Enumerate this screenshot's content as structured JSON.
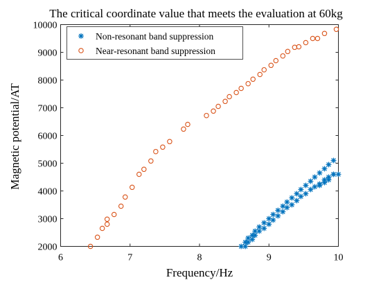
{
  "chart_data": {
    "type": "scatter",
    "title": "The critical coordinate value that meets the evaluation at 60kg",
    "xlabel": "Frequency/Hz",
    "ylabel": "Magnetic potential/AT",
    "xlim": [
      6,
      10
    ],
    "ylim": [
      2000,
      10000
    ],
    "xticks": [
      6,
      7,
      8,
      9,
      10
    ],
    "yticks": [
      2000,
      3000,
      4000,
      5000,
      6000,
      7000,
      8000,
      9000,
      10000
    ],
    "xtick_labels": [
      "6",
      "7",
      "8",
      "9",
      "10"
    ],
    "ytick_labels": [
      "2000",
      "3000",
      "4000",
      "5000",
      "6000",
      "7000",
      "8000",
      "9000",
      "10000"
    ],
    "grid": false,
    "legend_position": "top-left",
    "series": [
      {
        "name": "Non-resonant band suppression",
        "marker": "asterisk",
        "color": "#0072BD",
        "points": [
          [
            8.6,
            2000
          ],
          [
            8.66,
            2150
          ],
          [
            8.7,
            2300
          ],
          [
            8.76,
            2400
          ],
          [
            8.8,
            2550
          ],
          [
            8.86,
            2700
          ],
          [
            8.93,
            2850
          ],
          [
            9.0,
            3000
          ],
          [
            9.06,
            3150
          ],
          [
            9.13,
            3300
          ],
          [
            9.2,
            3450
          ],
          [
            9.26,
            3600
          ],
          [
            9.33,
            3750
          ],
          [
            9.4,
            3900
          ],
          [
            9.46,
            4050
          ],
          [
            9.53,
            4200
          ],
          [
            9.6,
            4350
          ],
          [
            9.66,
            4500
          ],
          [
            9.73,
            4650
          ],
          [
            9.8,
            4800
          ],
          [
            9.86,
            4950
          ],
          [
            9.93,
            5100
          ],
          [
            9.73,
            4200
          ],
          [
            9.8,
            4300
          ],
          [
            9.86,
            4400
          ],
          [
            9.93,
            4600
          ],
          [
            10.0,
            4600
          ],
          [
            8.66,
            2000
          ],
          [
            8.7,
            2150
          ],
          [
            8.76,
            2250
          ],
          [
            8.8,
            2400
          ],
          [
            8.86,
            2550
          ],
          [
            8.93,
            2650
          ],
          [
            9.0,
            2800
          ],
          [
            9.06,
            2950
          ],
          [
            9.13,
            3100
          ],
          [
            9.2,
            3250
          ],
          [
            9.26,
            3400
          ],
          [
            9.33,
            3500
          ],
          [
            9.4,
            3650
          ],
          [
            9.46,
            3800
          ],
          [
            9.53,
            3900
          ],
          [
            9.6,
            4050
          ],
          [
            9.66,
            4150
          ],
          [
            9.73,
            4250
          ],
          [
            9.8,
            4400
          ],
          [
            9.86,
            4500
          ],
          [
            9.93,
            4600
          ]
        ]
      },
      {
        "name": "Near-resonant band suppression",
        "marker": "circle",
        "color": "#D95319",
        "points": [
          [
            6.43,
            2000
          ],
          [
            6.53,
            2330
          ],
          [
            6.6,
            2650
          ],
          [
            6.67,
            2800
          ],
          [
            6.67,
            2980
          ],
          [
            6.77,
            3150
          ],
          [
            6.87,
            3450
          ],
          [
            6.93,
            3780
          ],
          [
            7.03,
            4130
          ],
          [
            7.13,
            4600
          ],
          [
            7.2,
            4780
          ],
          [
            7.3,
            5080
          ],
          [
            7.37,
            5420
          ],
          [
            7.47,
            5580
          ],
          [
            7.57,
            5780
          ],
          [
            7.77,
            6230
          ],
          [
            7.83,
            6400
          ],
          [
            8.1,
            6720
          ],
          [
            8.2,
            6880
          ],
          [
            8.27,
            7050
          ],
          [
            8.37,
            7230
          ],
          [
            8.43,
            7400
          ],
          [
            8.53,
            7550
          ],
          [
            8.6,
            7700
          ],
          [
            8.7,
            7870
          ],
          [
            8.77,
            8030
          ],
          [
            8.87,
            8200
          ],
          [
            8.93,
            8370
          ],
          [
            9.03,
            8530
          ],
          [
            9.1,
            8700
          ],
          [
            9.2,
            8870
          ],
          [
            9.27,
            9030
          ],
          [
            9.37,
            9180
          ],
          [
            9.43,
            9200
          ],
          [
            9.53,
            9350
          ],
          [
            9.63,
            9500
          ],
          [
            9.7,
            9500
          ],
          [
            9.8,
            9680
          ],
          [
            9.97,
            9830
          ]
        ]
      }
    ]
  }
}
